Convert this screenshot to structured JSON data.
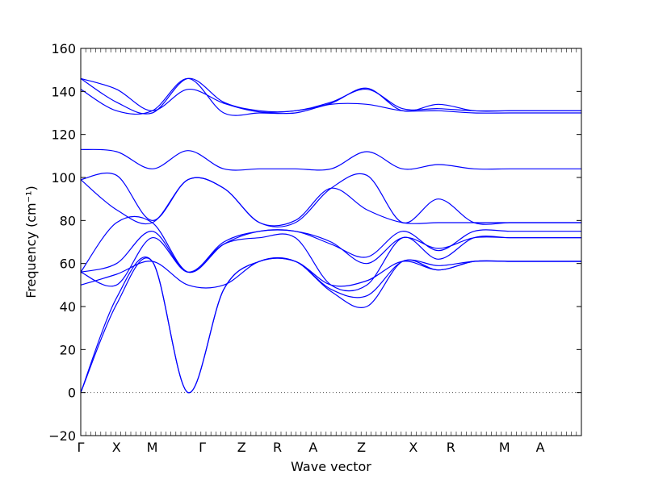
{
  "chart_data": {
    "type": "line",
    "title": "",
    "xlabel": "Wave vector",
    "ylabel": "Frequency (cm⁻¹)",
    "ylim": [
      -20,
      160
    ],
    "yticks": [
      -20,
      0,
      20,
      40,
      60,
      80,
      100,
      120,
      140,
      160
    ],
    "grid": false,
    "line_color": "#0000ff",
    "zero_line_color": "#555555",
    "x": [
      0,
      2,
      4,
      6,
      8,
      10,
      12,
      14,
      16,
      18,
      20,
      22,
      24,
      26,
      28
    ],
    "kpoints": [
      {
        "label": "Γ",
        "x": 0
      },
      {
        "label": "X",
        "x": 2
      },
      {
        "label": "M",
        "x": 4
      },
      {
        "label": "Γ",
        "x": 6.8
      },
      {
        "label": "Z",
        "x": 9
      },
      {
        "label": "R",
        "x": 11
      },
      {
        "label": "A",
        "x": 13
      },
      {
        "label": "Z",
        "x": 15.7
      },
      {
        "label": "X",
        "x": 18.6
      },
      {
        "label": "R",
        "x": 20.7
      },
      {
        "label": "M",
        "x": 23.7
      },
      {
        "label": "A",
        "x": 25.7
      }
    ],
    "series": [
      {
        "values": [
          146,
          141,
          131,
          141,
          134.5,
          130.5,
          131,
          134.5,
          141.5,
          131,
          134,
          131,
          131,
          131,
          131
        ]
      },
      {
        "values": [
          146,
          135,
          130,
          146,
          135,
          131,
          131,
          135,
          141,
          132,
          132,
          131,
          131,
          131,
          131
        ]
      },
      {
        "values": [
          141,
          131,
          131,
          146,
          130,
          130,
          130,
          134,
          134,
          131,
          131,
          130,
          130,
          130,
          130
        ]
      },
      {
        "values": [
          113,
          112,
          104,
          112.5,
          104,
          104,
          104,
          104,
          112,
          104,
          106,
          104,
          104,
          104,
          104
        ]
      },
      {
        "values": [
          99,
          101,
          80,
          99,
          95,
          79,
          79,
          95,
          101,
          79,
          90,
          79,
          79,
          79,
          79
        ]
      },
      {
        "values": [
          99,
          85,
          79,
          99,
          95,
          79,
          80,
          95,
          85,
          79,
          79,
          79,
          79,
          79,
          79
        ]
      },
      {
        "values": [
          56,
          79,
          79,
          56,
          69,
          75,
          75,
          69,
          63,
          75,
          66,
          75,
          75,
          75,
          75
        ]
      },
      {
        "values": [
          56,
          60,
          75,
          56,
          70,
          75,
          75,
          70,
          60,
          72,
          67,
          72,
          72,
          72,
          72
        ]
      },
      {
        "values": [
          56,
          50,
          72,
          56,
          69,
          72,
          72,
          50,
          50,
          72,
          62,
          72,
          72,
          72,
          72
        ]
      },
      {
        "values": [
          50,
          55,
          61,
          50,
          50,
          61,
          61,
          48,
          45,
          61,
          59,
          61,
          61,
          61,
          61
        ]
      },
      {
        "values": [
          0,
          44,
          61,
          0,
          48,
          61,
          61,
          50,
          52,
          61,
          57,
          61,
          61,
          61,
          61
        ]
      },
      {
        "values": [
          0,
          41,
          61,
          0,
          48,
          61,
          61,
          47,
          40,
          61,
          57,
          61,
          61,
          61,
          61
        ]
      }
    ]
  }
}
